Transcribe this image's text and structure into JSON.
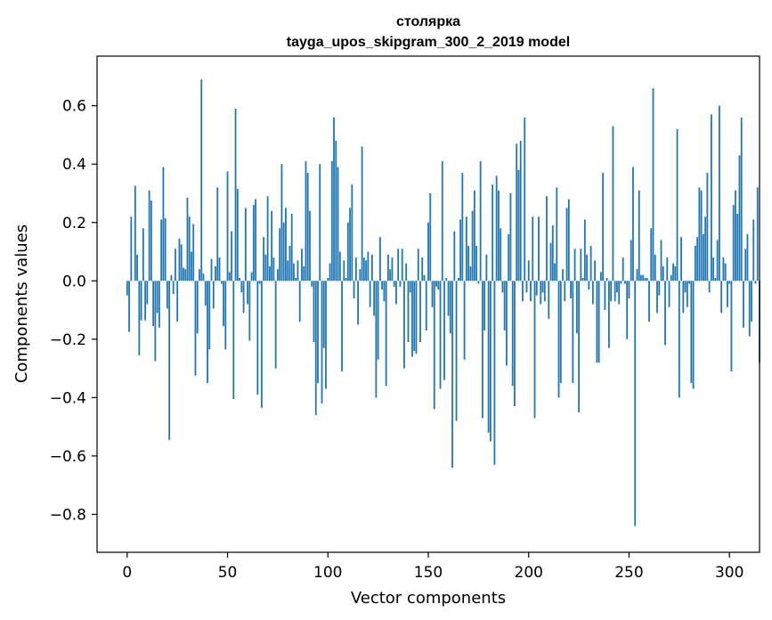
{
  "chart_data": {
    "type": "bar",
    "title": "столярка",
    "subtitle": "tayga_upos_skipgram_300_2_2019 model",
    "xlabel": "Vector components",
    "ylabel": "Components values",
    "xlim": [
      -15,
      315
    ],
    "ylim": [
      -0.93,
      0.77
    ],
    "xticks": [
      0,
      50,
      100,
      150,
      200,
      250,
      300
    ],
    "yticks": [
      -0.8,
      -0.6,
      -0.4,
      -0.2,
      0.0,
      0.2,
      0.4,
      0.6
    ],
    "bar_color": "#1f77b4",
    "grid": false,
    "legend": "none",
    "values": [
      -0.05,
      -0.175,
      0.22,
      0.0,
      0.325,
      0.09,
      -0.255,
      -0.135,
      0.18,
      -0.135,
      -0.08,
      0.31,
      0.275,
      -0.155,
      -0.275,
      -0.11,
      -0.16,
      0.21,
      0.39,
      0.215,
      -0.095,
      -0.545,
      0.02,
      -0.045,
      0.11,
      -0.14,
      0.145,
      0.125,
      0.045,
      0.04,
      0.285,
      0.22,
      0.1,
      0.195,
      -0.325,
      -0.18,
      0.04,
      0.69,
      0.025,
      -0.085,
      -0.35,
      -0.235,
      0.075,
      -0.095,
      0.05,
      0.32,
      0.08,
      -0.01,
      -0.155,
      -0.235,
      0.375,
      0.03,
      0.17,
      -0.405,
      0.59,
      0.315,
      0.01,
      -0.04,
      -0.11,
      0.25,
      -0.08,
      -0.205,
      0.03,
      0.26,
      0.28,
      -0.39,
      -0.01,
      -0.435,
      0.15,
      0.09,
      0.29,
      0.05,
      0.24,
      0.08,
      -0.3,
      0.04,
      0.18,
      0.4,
      0.2,
      0.25,
      0.07,
      0.12,
      0.23,
      0.06,
      0.01,
      0.07,
      -0.14,
      0.11,
      0.05,
      0.41,
      0.37,
      0.24,
      -0.02,
      -0.21,
      -0.46,
      -0.35,
      0.4,
      -0.42,
      -0.23,
      -0.37,
      0.01,
      0.06,
      0.41,
      0.56,
      0.48,
      0.39,
      0.1,
      -0.31,
      0.07,
      0.01,
      0.2,
      0.25,
      0.33,
      -0.06,
      0.08,
      -0.15,
      0.04,
      0.46,
      0.08,
      0.07,
      0.1,
      -0.09,
      0.09,
      -0.12,
      -0.4,
      -0.27,
      0.15,
      -0.03,
      -0.07,
      -0.36,
      0.09,
      0.04,
      0.08,
      -0.02,
      -0.08,
      0.11,
      -0.02,
      0.11,
      -0.3,
      0.06,
      -0.21,
      -0.04,
      -0.26,
      -0.24,
      -0.25,
      0.11,
      -0.21,
      0.08,
      0.02,
      -0.17,
      0.2,
      0.3,
      -0.09,
      -0.44,
      -0.02,
      -0.03,
      -0.37,
      0.41,
      -0.34,
      0.01,
      -0.12,
      -0.18,
      -0.64,
      0.17,
      -0.48,
      0.01,
      0.21,
      0.37,
      -0.27,
      0.22,
      0.12,
      0.05,
      0.24,
      0.31,
      0.12,
      -0.01,
      0.41,
      -0.47,
      -0.17,
      0.09,
      -0.52,
      -0.55,
      0.33,
      -0.63,
      0.36,
      0.31,
      0.18,
      -0.04,
      -0.17,
      -0.29,
      0.16,
      0.3,
      -0.36,
      -0.43,
      0.47,
      0.38,
      0.48,
      -0.07,
      0.56,
      -0.04,
      0.07,
      -0.07,
      0.22,
      -0.47,
      -0.05,
      0.22,
      -0.08,
      -0.04,
      -0.07,
      0.29,
      -0.13,
      0.13,
      0.19,
      0.06,
      0.32,
      -0.4,
      -0.35,
      0.04,
      -0.07,
      0.25,
      0.28,
      -0.06,
      -0.35,
      0.11,
      -0.18,
      -0.45,
      0.11,
      0.01,
      0.21,
      0.09,
      -0.03,
      0.12,
      -0.08,
      0.07,
      -0.28,
      -0.28,
      0.03,
      0.37,
      -0.1,
      0.01,
      -0.23,
      -0.07,
      0.53,
      -0.07,
      -0.04,
      -0.08,
      -0.01,
      0.08,
      -0.01,
      -0.2,
      -0.06,
      0.14,
      0.39,
      -0.84,
      0.04,
      0.31,
      0.02,
      0.02,
      0.01,
      0.01,
      -0.14,
      0.18,
      0.66,
      0.09,
      -0.11,
      -0.05,
      0.14,
      0.05,
      -0.22,
      0.08,
      -0.09,
      0.02,
      0.06,
      0.05,
      0.52,
      -0.4,
      0.15,
      -0.11,
      -0.04,
      -0.09,
      -0.01,
      -0.35,
      -0.37,
      0.12,
      0.15,
      0.32,
      0.31,
      0.16,
      0.22,
      0.37,
      -0.04,
      0.57,
      0.08,
      0.01,
      0.14,
      0.6,
      -0.11,
      0.08,
      0.06,
      -0.09,
      -0.01,
      -0.31,
      0.26,
      0.31,
      0.23,
      0.43,
      0.56,
      -0.16,
      0.11,
      0.16,
      -0.19,
      -0.14,
      0.21,
      -0.01,
      0.32,
      -0.28
    ]
  }
}
